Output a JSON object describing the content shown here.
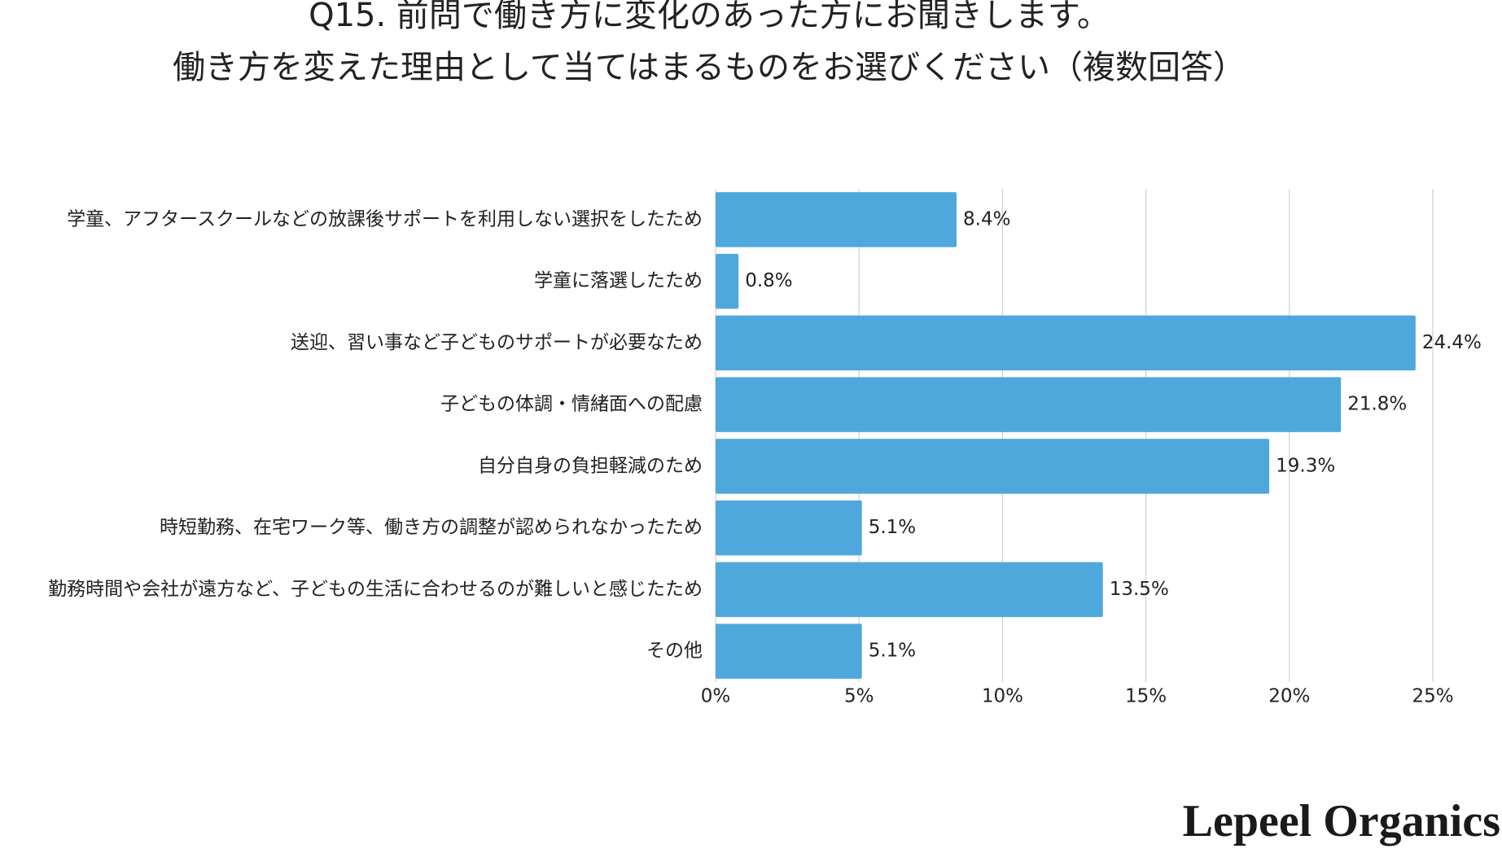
{
  "chart_data": {
    "type": "hbar",
    "title": [
      "Q15. 前問で働き方に変化のあった方にお聞きします。",
      "働き方を変えた理由として当てはまるものをお選びください（複数回答）"
    ],
    "categories": [
      "学童、アフタースクールなどの放課後サポートを利用しない選択をしたため",
      "学童に落選したため",
      "送迎、習い事など子どものサポートが必要なため",
      "子どもの体調・情緒面への配慮",
      "自分自身の負担軽減のため",
      "時短勤務、在宅ワーク等、働き方の調整が認められなかったため",
      "勤務時間や会社が遠方など、子どもの生活に合わせるのが難しいと感じたため",
      "その他"
    ],
    "values": [
      8.4,
      0.8,
      24.4,
      21.8,
      19.3,
      5.1,
      13.5,
      5.1
    ],
    "value_labels": [
      "8.4%",
      "0.8%",
      "24.4%",
      "21.8%",
      "19.3%",
      "5.1%",
      "13.5%",
      "5.1%"
    ],
    "color": "#4fa8dc",
    "xlim": [
      0,
      25
    ],
    "xticks": [
      {
        "value": 0,
        "label": "0%"
      },
      {
        "value": 5,
        "label": "5%"
      },
      {
        "value": 10,
        "label": "10%"
      },
      {
        "value": 15,
        "label": "15%"
      },
      {
        "value": 20,
        "label": "20%"
      },
      {
        "value": 25,
        "label": "25%"
      }
    ],
    "grid": true,
    "watermark": "Lepeel Organics"
  }
}
